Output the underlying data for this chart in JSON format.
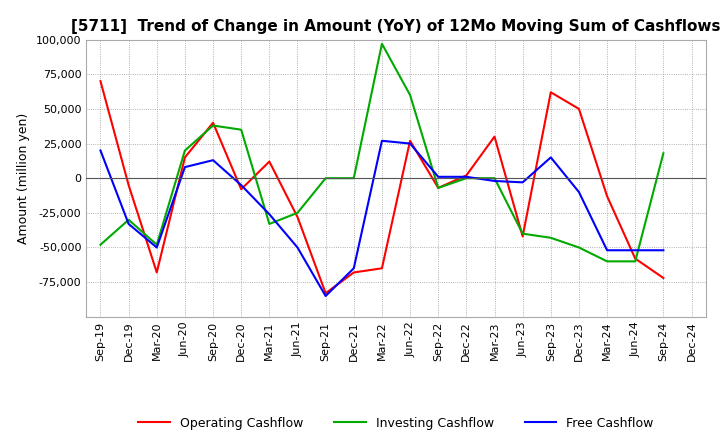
{
  "title": "[5711]  Trend of Change in Amount (YoY) of 12Mo Moving Sum of Cashflows",
  "ylabel": "Amount (million yen)",
  "labels": [
    "Sep-19",
    "Dec-19",
    "Mar-20",
    "Jun-20",
    "Sep-20",
    "Dec-20",
    "Mar-21",
    "Jun-21",
    "Sep-21",
    "Dec-21",
    "Mar-22",
    "Jun-22",
    "Sep-22",
    "Dec-22",
    "Mar-23",
    "Jun-23",
    "Sep-23",
    "Dec-23",
    "Mar-24",
    "Jun-24",
    "Sep-24",
    "Dec-24"
  ],
  "operating": [
    70000,
    -5000,
    -68000,
    15000,
    40000,
    -8000,
    12000,
    -28000,
    -83000,
    -68000,
    -65000,
    27000,
    -7000,
    2000,
    30000,
    -42000,
    62000,
    50000,
    -13000,
    -58000,
    -72000,
    null
  ],
  "investing": [
    -48000,
    -30000,
    -48000,
    20000,
    38000,
    35000,
    -33000,
    -25000,
    0,
    0,
    97000,
    60000,
    -7000,
    0,
    0,
    -40000,
    -43000,
    -50000,
    -60000,
    -60000,
    18000,
    null
  ],
  "free": [
    20000,
    -33000,
    -50000,
    8000,
    13000,
    -5000,
    -26000,
    -50000,
    -85000,
    -65000,
    27000,
    25000,
    1000,
    1000,
    -2000,
    -3000,
    15000,
    -10000,
    -52000,
    -52000,
    -52000,
    null
  ],
  "ylim": [
    -100000,
    100000
  ],
  "yticks": [
    -75000,
    -50000,
    -25000,
    0,
    25000,
    50000,
    75000,
    100000
  ],
  "operating_color": "#ff0000",
  "investing_color": "#00aa00",
  "free_color": "#0000ff",
  "bg_color": "#ffffff",
  "grid_color": "#999999",
  "title_fontsize": 11,
  "axis_fontsize": 8,
  "legend_labels": [
    "Operating Cashflow",
    "Investing Cashflow",
    "Free Cashflow"
  ]
}
